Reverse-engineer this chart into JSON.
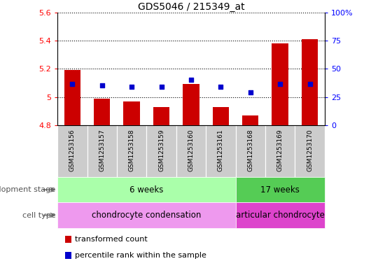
{
  "title": "GDS5046 / 215349_at",
  "samples": [
    "GSM1253156",
    "GSM1253157",
    "GSM1253158",
    "GSM1253159",
    "GSM1253160",
    "GSM1253161",
    "GSM1253168",
    "GSM1253169",
    "GSM1253170"
  ],
  "bar_values": [
    5.19,
    4.99,
    4.97,
    4.93,
    5.09,
    4.93,
    4.87,
    5.38,
    5.41
  ],
  "dot_values_left": [
    5.09,
    5.08,
    5.07,
    5.07,
    5.12,
    5.07,
    5.03,
    5.09,
    5.09
  ],
  "bar_bottom": 4.8,
  "ylim_left": [
    4.8,
    5.6
  ],
  "ylim_right": [
    0,
    100
  ],
  "yticks_left": [
    4.8,
    5.0,
    5.2,
    5.4,
    5.6
  ],
  "ytick_labels_left": [
    "4.8",
    "5",
    "5.2",
    "5.4",
    "5.6"
  ],
  "yticks_right": [
    0,
    25,
    50,
    75,
    100
  ],
  "ytick_labels_right": [
    "0",
    "25",
    "50",
    "75",
    "100%"
  ],
  "bar_color": "#cc0000",
  "dot_color": "#0000cc",
  "dev_stage_groups": [
    {
      "label": "6 weeks",
      "start": 0,
      "end": 6,
      "color": "#aaffaa"
    },
    {
      "label": "17 weeks",
      "start": 6,
      "end": 9,
      "color": "#55cc55"
    }
  ],
  "cell_type_groups": [
    {
      "label": "chondrocyte condensation",
      "start": 0,
      "end": 6,
      "color": "#ee99ee"
    },
    {
      "label": "articular chondrocyte",
      "start": 6,
      "end": 9,
      "color": "#dd44cc"
    }
  ],
  "row_label_dev": "development stage",
  "row_label_cell": "cell type",
  "legend_bar": "transformed count",
  "legend_dot": "percentile rank within the sample",
  "bar_width": 0.55,
  "sample_bg_color": "#cccccc",
  "fig_bg": "#ffffff"
}
